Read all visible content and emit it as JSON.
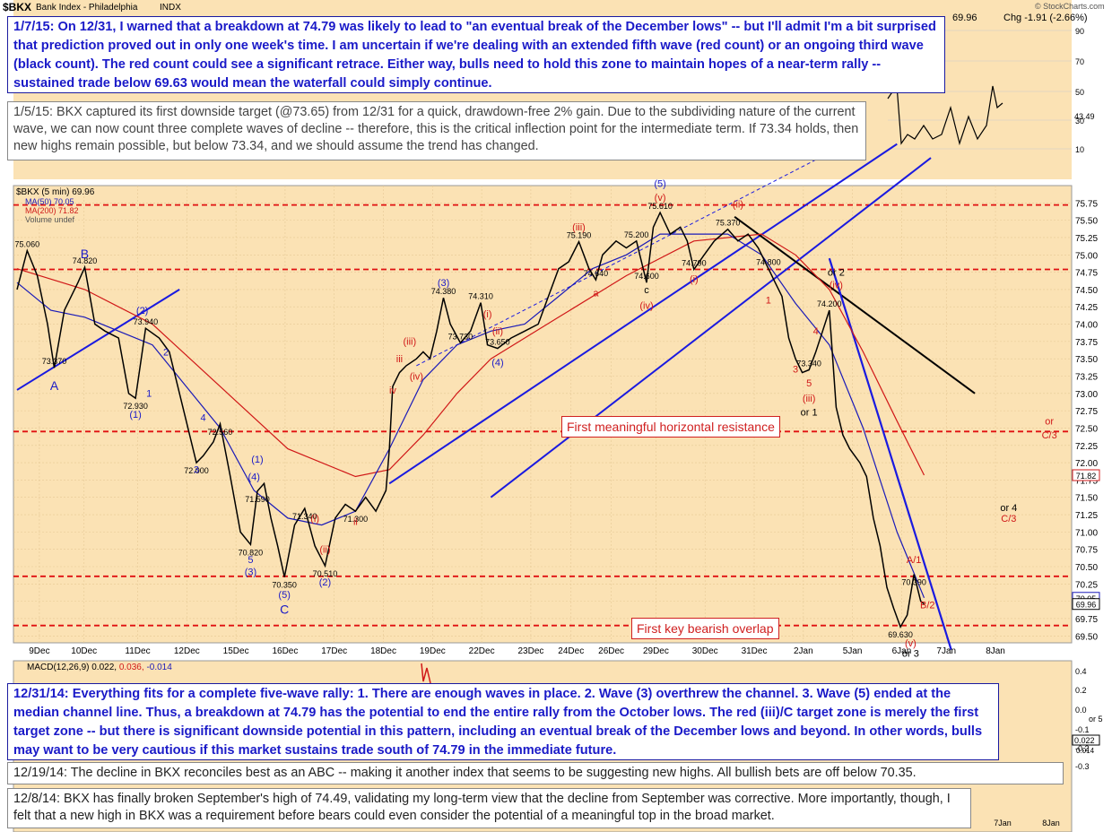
{
  "header": {
    "symbol": "$BKX",
    "name": "Bank Index - Philadelphia",
    "exchange": "INDX",
    "last": "69.96",
    "chg": "Chg -1.91 (-2.66%)",
    "stockcharts": "© StockCharts.com"
  },
  "legend": {
    "price": "$BKX (5 min) 69.96",
    "ma50": "MA(50) 70.05",
    "ma200": "MA(200) 71.82",
    "volume": "Volume undef",
    "macd_label": "MACD(12,26,9)",
    "macd_v1": "0.022,",
    "macd_v2": "0.036,",
    "macd_v3": "-0.014"
  },
  "colors": {
    "background": "#fbe2b4",
    "price": "#000000",
    "ma50": "#1a1ab8",
    "ma200": "#d01818",
    "channel": "#1a1ae0",
    "resistance": "#e01010",
    "annotation_blue": "#1a1ac8"
  },
  "annotations": {
    "n0107": "1/7/15:  On 12/31, I warned that a breakdown at 74.79 was likely to lead to \"an eventual break of the December lows\" -- but I'll admit I'm a bit surprised that prediction proved out in only one week's time.  I am uncertain if we're dealing with an extended fifth wave (red count) or an ongoing third wave (black count).  The red count could see a significant retrace.  Either way, bulls need to hold this zone to maintain hopes of a near-term rally -- sustained trade below 69.63 would mean the waterfall could simply continue.",
    "n0105": "1/5/15:  BKX captured its first downside target (@73.65) from 12/31 for a quick, drawdown-free 2% gain.  Due to the subdividing nature of the current wave, we can now count three complete waves of decline -- therefore, this is the critical inflection point for the intermediate term.  If 73.34 holds, then new highs remain possible, but below 73.34, and we should assume the trend has changed.",
    "n1231": "12/31/14:  Everything fits for a complete five-wave rally:  1. There are enough waves in place.  2.  Wave (3) overthrew the channel.  3.  Wave (5) ended at the median channel line.  Thus, a breakdown at 74.79 has the potential to end the entire rally from the October lows.  The red (iii)/C target zone is merely the first target zone -- but there is significant downside potential in this pattern, including an eventual break of the December lows and beyond.  In other words, bulls may want to be very cautious if this market sustains trade south of 74.79 in the immediate future.",
    "n1219": "12/19/14:  The decline in BKX reconciles best as an ABC -- making it another index that seems to be suggesting new highs.  All bullish bets are off below 70.35.",
    "n1208": "12/8/14:  BKX has finally broken September's high of 74.49, validating my long-term view that the decline from September was corrective.  More importantly, though, I felt that a new high in BKX was a requirement before bears could even consider the potential of a meaningful top in the broad market."
  },
  "labels": {
    "resistance": "First meaningful horizontal resistance",
    "overlap": "First key bearish overlap"
  },
  "chart_data": {
    "type": "line",
    "title": "Bank Index - Philadelphia",
    "interval": "5 min",
    "ylim": [
      69.4,
      76.0
    ],
    "y_ticks": [
      "75.75",
      "75.50",
      "75.25",
      "75.00",
      "74.75",
      "74.50",
      "74.25",
      "74.00",
      "73.75",
      "73.50",
      "73.25",
      "73.00",
      "72.75",
      "72.50",
      "72.25",
      "72.00",
      "71.75",
      "71.50",
      "71.25",
      "71.00",
      "70.75",
      "70.50",
      "70.25",
      "70.00",
      "69.75",
      "69.50"
    ],
    "x_labels": [
      "9Dec",
      "10Dec",
      "11Dec",
      "12Dec",
      "15Dec",
      "16Dec",
      "17Dec",
      "18Dec",
      "19Dec",
      "22Dec",
      "23Dec",
      "24Dec",
      "26Dec",
      "29Dec",
      "30Dec",
      "31Dec",
      "2Jan",
      "5Jan",
      "6Jan",
      "7Jan",
      "8Jan"
    ],
    "price": [
      [
        0,
        74.5
      ],
      [
        0.3,
        75.06
      ],
      [
        0.6,
        74.7
      ],
      [
        0.9,
        74.0
      ],
      [
        1.1,
        73.37
      ],
      [
        1.4,
        74.2
      ],
      [
        1.8,
        74.6
      ],
      [
        2.0,
        74.82
      ],
      [
        2.3,
        74.0
      ],
      [
        2.6,
        73.9
      ],
      [
        3.0,
        73.8
      ],
      [
        3.3,
        73.0
      ],
      [
        3.5,
        72.93
      ],
      [
        3.8,
        73.94
      ],
      [
        4.2,
        73.8
      ],
      [
        4.5,
        73.6
      ],
      [
        4.7,
        73.2
      ],
      [
        5.0,
        72.6
      ],
      [
        5.3,
        72.0
      ],
      [
        5.5,
        72.1
      ],
      [
        5.8,
        72.3
      ],
      [
        6.0,
        72.56
      ],
      [
        6.3,
        71.8
      ],
      [
        6.6,
        71.0
      ],
      [
        6.9,
        70.82
      ],
      [
        7.1,
        71.59
      ],
      [
        7.3,
        71.7
      ],
      [
        7.5,
        71.2
      ],
      [
        7.7,
        70.8
      ],
      [
        7.9,
        70.35
      ],
      [
        8.2,
        71.1
      ],
      [
        8.5,
        71.34
      ],
      [
        8.8,
        70.8
      ],
      [
        9.1,
        70.51
      ],
      [
        9.4,
        71.2
      ],
      [
        9.7,
        71.4
      ],
      [
        10.0,
        71.3
      ],
      [
        10.3,
        71.5
      ],
      [
        10.6,
        71.3
      ],
      [
        10.9,
        71.6
      ],
      [
        11.0,
        72.2
      ],
      [
        11.1,
        73.1
      ],
      [
        11.3,
        73.3
      ],
      [
        11.5,
        73.4
      ],
      [
        11.8,
        73.5
      ],
      [
        12.0,
        73.6
      ],
      [
        12.2,
        73.5
      ],
      [
        12.4,
        73.9
      ],
      [
        12.6,
        74.38
      ],
      [
        12.8,
        74.0
      ],
      [
        13.1,
        73.73
      ],
      [
        13.4,
        73.9
      ],
      [
        13.7,
        74.31
      ],
      [
        13.9,
        73.7
      ],
      [
        14.2,
        73.65
      ],
      [
        14.6,
        73.8
      ],
      [
        15.0,
        73.9
      ],
      [
        15.4,
        74.0
      ],
      [
        15.7,
        74.4
      ],
      [
        16.0,
        74.8
      ],
      [
        16.3,
        74.9
      ],
      [
        16.6,
        75.19
      ],
      [
        16.9,
        74.8
      ],
      [
        17.1,
        74.64
      ],
      [
        17.3,
        75.0
      ],
      [
        17.7,
        75.2
      ],
      [
        18.0,
        75.1
      ],
      [
        18.3,
        75.2
      ],
      [
        18.6,
        74.6
      ],
      [
        18.8,
        75.4
      ],
      [
        19.0,
        75.61
      ],
      [
        19.3,
        75.3
      ],
      [
        19.6,
        75.4
      ],
      [
        19.8,
        75.2
      ],
      [
        20.0,
        74.79
      ],
      [
        20.3,
        75.0
      ],
      [
        20.6,
        75.2
      ],
      [
        21.0,
        75.37
      ],
      [
        21.3,
        75.2
      ],
      [
        21.6,
        75.3
      ],
      [
        21.9,
        75.1
      ],
      [
        22.2,
        74.8
      ],
      [
        22.4,
        74.6
      ],
      [
        22.6,
        74.4
      ],
      [
        22.8,
        73.8
      ],
      [
        23.0,
        73.5
      ],
      [
        23.2,
        73.3
      ],
      [
        23.4,
        73.34
      ],
      [
        23.6,
        73.6
      ],
      [
        23.8,
        73.9
      ],
      [
        24.0,
        74.2
      ],
      [
        24.1,
        73.5
      ],
      [
        24.2,
        72.8
      ],
      [
        24.4,
        72.4
      ],
      [
        24.6,
        72.2
      ],
      [
        24.9,
        72.0
      ],
      [
        25.1,
        71.8
      ],
      [
        25.3,
        71.2
      ],
      [
        25.5,
        70.8
      ],
      [
        25.7,
        70.2
      ],
      [
        25.9,
        69.9
      ],
      [
        26.1,
        69.63
      ],
      [
        26.3,
        69.8
      ],
      [
        26.5,
        70.39
      ],
      [
        26.7,
        70.0
      ],
      [
        26.8,
        69.96
      ]
    ],
    "ma50": [
      [
        0,
        74.6
      ],
      [
        1,
        74.2
      ],
      [
        2,
        74.1
      ],
      [
        3,
        73.9
      ],
      [
        4,
        73.7
      ],
      [
        5,
        73.1
      ],
      [
        6,
        72.5
      ],
      [
        7,
        71.6
      ],
      [
        8,
        71.2
      ],
      [
        9,
        71.1
      ],
      [
        10,
        71.3
      ],
      [
        11,
        72.2
      ],
      [
        12,
        73.2
      ],
      [
        13,
        73.7
      ],
      [
        14,
        73.9
      ],
      [
        15,
        74.0
      ],
      [
        16,
        74.4
      ],
      [
        17,
        74.8
      ],
      [
        18,
        75.0
      ],
      [
        19,
        75.3
      ],
      [
        20,
        75.3
      ],
      [
        21,
        75.3
      ],
      [
        22,
        75.0
      ],
      [
        23,
        74.3
      ],
      [
        24,
        73.7
      ],
      [
        25,
        72.5
      ],
      [
        26,
        71.0
      ],
      [
        26.8,
        70.05
      ]
    ],
    "ma200": [
      [
        0,
        74.8
      ],
      [
        2,
        74.5
      ],
      [
        4,
        74.0
      ],
      [
        6,
        73.1
      ],
      [
        8,
        72.2
      ],
      [
        10,
        71.8
      ],
      [
        11,
        71.9
      ],
      [
        12,
        72.4
      ],
      [
        13,
        73.0
      ],
      [
        14,
        73.5
      ],
      [
        16,
        74.1
      ],
      [
        18,
        74.7
      ],
      [
        20,
        75.2
      ],
      [
        22,
        75.3
      ],
      [
        23,
        75.0
      ],
      [
        24,
        74.5
      ],
      [
        25,
        73.6
      ],
      [
        26,
        72.6
      ],
      [
        26.8,
        71.82
      ]
    ],
    "horizontal_levels": [
      75.72,
      74.79,
      72.45,
      70.36,
      69.65
    ],
    "point_labels": [
      {
        "x": 0.3,
        "y": 75.06,
        "text": "75.060"
      },
      {
        "x": 2.0,
        "y": 74.82,
        "text": "74.820"
      },
      {
        "x": 1.1,
        "y": 73.37,
        "text": "73.370"
      },
      {
        "x": 3.8,
        "y": 73.94,
        "text": "73.940"
      },
      {
        "x": 3.5,
        "y": 72.93,
        "text": "72.930"
      },
      {
        "x": 6.0,
        "y": 72.56,
        "text": "72.560"
      },
      {
        "x": 5.3,
        "y": 72.0,
        "text": "72.000"
      },
      {
        "x": 7.1,
        "y": 71.59,
        "text": "71.590"
      },
      {
        "x": 8.5,
        "y": 71.34,
        "text": "71.340"
      },
      {
        "x": 6.9,
        "y": 70.82,
        "text": "70.820"
      },
      {
        "x": 7.9,
        "y": 70.35,
        "text": "70.350"
      },
      {
        "x": 9.1,
        "y": 70.51,
        "text": "70.510"
      },
      {
        "x": 10.0,
        "y": 71.3,
        "text": "71.300"
      },
      {
        "x": 12.6,
        "y": 74.38,
        "text": "74.380"
      },
      {
        "x": 13.7,
        "y": 74.31,
        "text": "74.310"
      },
      {
        "x": 13.1,
        "y": 73.73,
        "text": "73.730"
      },
      {
        "x": 14.2,
        "y": 73.65,
        "text": "73.650"
      },
      {
        "x": 16.6,
        "y": 75.19,
        "text": "75.190"
      },
      {
        "x": 17.1,
        "y": 74.64,
        "text": "74.640"
      },
      {
        "x": 18.3,
        "y": 75.2,
        "text": "75.200"
      },
      {
        "x": 18.6,
        "y": 74.6,
        "text": "74.600"
      },
      {
        "x": 19.0,
        "y": 75.61,
        "text": "75.610"
      },
      {
        "x": 20.0,
        "y": 74.79,
        "text": "74.790"
      },
      {
        "x": 21.0,
        "y": 75.37,
        "text": "75.370"
      },
      {
        "x": 22.2,
        "y": 74.8,
        "text": "74.800"
      },
      {
        "x": 24.0,
        "y": 74.2,
        "text": "74.200"
      },
      {
        "x": 23.4,
        "y": 73.34,
        "text": "73.340"
      },
      {
        "x": 26.5,
        "y": 70.39,
        "text": "70.390"
      },
      {
        "x": 26.1,
        "y": 69.63,
        "text": "69.630"
      }
    ],
    "wave_labels": [
      {
        "x": 1.1,
        "y": 73.05,
        "text": "A",
        "color": "blue"
      },
      {
        "x": 2.0,
        "y": 74.95,
        "text": "B",
        "color": "blue"
      },
      {
        "x": 3.7,
        "y": 74.15,
        "text": "(2)",
        "color": "blue"
      },
      {
        "x": 4.4,
        "y": 73.55,
        "text": "2",
        "color": "blue"
      },
      {
        "x": 3.5,
        "y": 72.65,
        "text": "(1)",
        "color": "blue"
      },
      {
        "x": 3.9,
        "y": 72.95,
        "text": "1",
        "color": "blue"
      },
      {
        "x": 5.5,
        "y": 72.6,
        "text": "4",
        "color": "blue"
      },
      {
        "x": 5.3,
        "y": 71.85,
        "text": "3",
        "color": "blue"
      },
      {
        "x": 7.0,
        "y": 71.75,
        "text": "(4)",
        "color": "blue"
      },
      {
        "x": 7.1,
        "y": 72.0,
        "text": "(1)",
        "color": "blue"
      },
      {
        "x": 6.9,
        "y": 70.55,
        "text": "5",
        "color": "blue"
      },
      {
        "x": 6.9,
        "y": 70.38,
        "text": "(3)",
        "color": "blue"
      },
      {
        "x": 7.9,
        "y": 70.05,
        "text": "(5)",
        "color": "blue"
      },
      {
        "x": 7.9,
        "y": 69.82,
        "text": "C",
        "color": "blue"
      },
      {
        "x": 9.1,
        "y": 70.23,
        "text": "(2)",
        "color": "blue"
      },
      {
        "x": 12.6,
        "y": 74.55,
        "text": "(3)",
        "color": "blue"
      },
      {
        "x": 14.2,
        "y": 73.4,
        "text": "(4)",
        "color": "blue"
      },
      {
        "x": 19.0,
        "y": 75.98,
        "text": "(5)",
        "color": "blue"
      },
      {
        "x": 8.8,
        "y": 71.15,
        "text": "(i)",
        "color": "red"
      },
      {
        "x": 9.1,
        "y": 70.7,
        "text": "(ii)",
        "color": "red"
      },
      {
        "x": 10.0,
        "y": 71.1,
        "text": "ii",
        "color": "red"
      },
      {
        "x": 11.3,
        "y": 73.45,
        "text": "iii",
        "color": "red"
      },
      {
        "x": 11.6,
        "y": 73.7,
        "text": "(iii)",
        "color": "red"
      },
      {
        "x": 11.1,
        "y": 73.0,
        "text": "iv",
        "color": "red"
      },
      {
        "x": 11.8,
        "y": 73.2,
        "text": "(iv)",
        "color": "red"
      },
      {
        "x": 13.9,
        "y": 74.1,
        "text": "(i)",
        "color": "red"
      },
      {
        "x": 14.2,
        "y": 73.85,
        "text": "(ii)",
        "color": "red"
      },
      {
        "x": 16.6,
        "y": 75.35,
        "text": "(iii)",
        "color": "red"
      },
      {
        "x": 17.1,
        "y": 74.4,
        "text": "a",
        "color": "red"
      },
      {
        "x": 18.6,
        "y": 74.45,
        "text": "c",
        "color": "black"
      },
      {
        "x": 18.6,
        "y": 74.22,
        "text": "(iv)",
        "color": "red"
      },
      {
        "x": 19.0,
        "y": 75.78,
        "text": "(v)",
        "color": "red"
      },
      {
        "x": 20.0,
        "y": 74.6,
        "text": "(i)",
        "color": "red"
      },
      {
        "x": 21.3,
        "y": 75.68,
        "text": "(ii)",
        "color": "red"
      },
      {
        "x": 22.2,
        "y": 74.3,
        "text": "1",
        "color": "red"
      },
      {
        "x": 23.6,
        "y": 73.85,
        "text": "4",
        "color": "red"
      },
      {
        "x": 23.0,
        "y": 73.3,
        "text": "3",
        "color": "red"
      },
      {
        "x": 23.4,
        "y": 73.1,
        "text": "5",
        "color": "red"
      },
      {
        "x": 23.4,
        "y": 72.88,
        "text": "(iii)",
        "color": "red"
      },
      {
        "x": 23.4,
        "y": 72.68,
        "text": "or 1",
        "color": "black"
      },
      {
        "x": 24.2,
        "y": 74.7,
        "text": "or 2",
        "color": "black"
      },
      {
        "x": 24.2,
        "y": 74.52,
        "text": "(iv)",
        "color": "red"
      },
      {
        "x": 26.5,
        "y": 70.55,
        "text": "A/1",
        "color": "red"
      },
      {
        "x": 26.9,
        "y": 69.9,
        "text": "B/2",
        "color": "red"
      },
      {
        "x": 26.4,
        "y": 69.35,
        "text": "(v)",
        "color": "red"
      },
      {
        "x": 26.4,
        "y": 69.2,
        "text": "or 3",
        "color": "black"
      },
      {
        "x": 29.3,
        "y": 71.3,
        "text": "or 4",
        "color": "black"
      },
      {
        "x": 29.3,
        "y": 71.15,
        "text": "C/3",
        "color": "red"
      },
      {
        "x": 30.5,
        "y": 72.55,
        "text": "or",
        "color": "red"
      },
      {
        "x": 30.5,
        "y": 72.35,
        "text": "C/3",
        "color": "red"
      }
    ],
    "right_price_tags": [
      {
        "y": 71.82,
        "text": "71.82",
        "color": "red"
      },
      {
        "y": 70.05,
        "text": "70.05",
        "color": "blue"
      },
      {
        "y": 69.96,
        "text": "69.96",
        "color": "black"
      }
    ],
    "top_panel_ticks": [
      "90",
      "70",
      "50",
      "30",
      "10"
    ],
    "top_panel_value": "43.49",
    "macd_ticks": [
      "0.4",
      "0.2",
      "0.0",
      "-0.1",
      "-0.2",
      "-0.3"
    ],
    "macd_tag": "0.022",
    "macd_tag2": "0.014",
    "macd_extra": "or 5",
    "bottom_x_labels": [
      "7Jan",
      "8Jan"
    ]
  }
}
